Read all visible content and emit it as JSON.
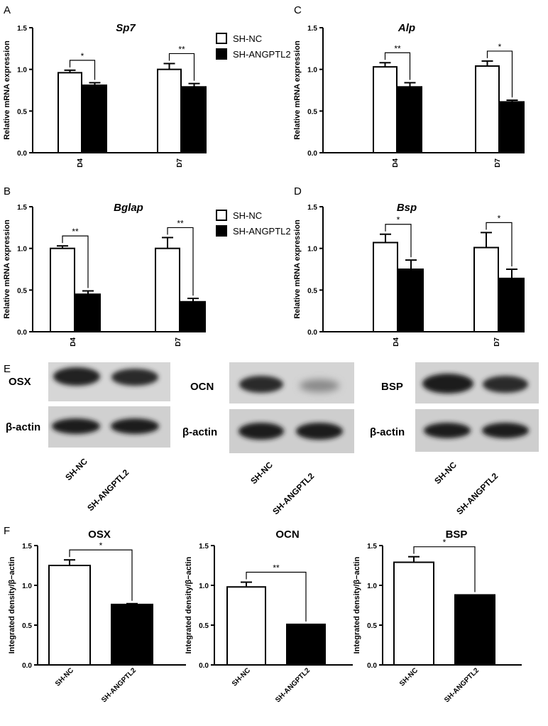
{
  "panel_labels": {
    "A": "A",
    "B": "B",
    "C": "C",
    "D": "D",
    "E": "E",
    "F": "F"
  },
  "legend": {
    "items": [
      {
        "label": "SH-NC",
        "fill": "#ffffff"
      },
      {
        "label": "SH-ANGPTL2",
        "fill": "#000000"
      }
    ]
  },
  "blots": {
    "panels": [
      {
        "target": "OSX",
        "control": "β-actin"
      },
      {
        "target": "OCN",
        "control": "β-actin"
      },
      {
        "target": "BSP",
        "control": "β-actin"
      }
    ],
    "lanes": [
      "SH-NC",
      "SH-ANGPTL2"
    ]
  },
  "chart_data": [
    {
      "id": "A",
      "type": "bar",
      "title": "Sp7",
      "ylabel": "Relative mRNA expression",
      "ylim": [
        0,
        1.5
      ],
      "yticks": [
        "0.0",
        "0.5",
        "1.0",
        "1.5"
      ],
      "categories": [
        "D4",
        "D7"
      ],
      "series": [
        {
          "name": "SH-NC",
          "values": [
            0.96,
            1.0
          ],
          "errors": [
            0.03,
            0.07
          ]
        },
        {
          "name": "SH-ANGPTL2",
          "values": [
            0.81,
            0.79
          ],
          "errors": [
            0.03,
            0.04
          ]
        }
      ],
      "significance": [
        "*",
        "**"
      ]
    },
    {
      "id": "C",
      "type": "bar",
      "title": "Alp",
      "ylabel": "Relative mRNA expression",
      "ylim": [
        0,
        1.5
      ],
      "yticks": [
        "0.0",
        "0.5",
        "1.0",
        "1.5"
      ],
      "categories": [
        "D4",
        "D7"
      ],
      "series": [
        {
          "name": "SH-NC",
          "values": [
            1.03,
            1.04
          ],
          "errors": [
            0.05,
            0.06
          ]
        },
        {
          "name": "SH-ANGPTL2",
          "values": [
            0.79,
            0.61
          ],
          "errors": [
            0.05,
            0.02
          ]
        }
      ],
      "significance": [
        "**",
        "*"
      ]
    },
    {
      "id": "B",
      "type": "bar",
      "title": "Bglap",
      "ylabel": "Relative mRNA expression",
      "ylim": [
        0,
        1.5
      ],
      "yticks": [
        "0.0",
        "0.5",
        "1.0",
        "1.5"
      ],
      "categories": [
        "D4",
        "D7"
      ],
      "series": [
        {
          "name": "SH-NC",
          "values": [
            1.0,
            1.0
          ],
          "errors": [
            0.03,
            0.13
          ]
        },
        {
          "name": "SH-ANGPTL2",
          "values": [
            0.45,
            0.36
          ],
          "errors": [
            0.04,
            0.04
          ]
        }
      ],
      "significance": [
        "**",
        "**"
      ]
    },
    {
      "id": "D",
      "type": "bar",
      "title": "Bsp",
      "ylabel": "Relative mRNA expression",
      "ylim": [
        0,
        1.5
      ],
      "yticks": [
        "0.0",
        "0.5",
        "1.0",
        "1.5"
      ],
      "categories": [
        "D4",
        "D7"
      ],
      "series": [
        {
          "name": "SH-NC",
          "values": [
            1.07,
            1.01
          ],
          "errors": [
            0.1,
            0.18
          ]
        },
        {
          "name": "SH-ANGPTL2",
          "values": [
            0.75,
            0.64
          ],
          "errors": [
            0.11,
            0.11
          ]
        }
      ],
      "significance": [
        "*",
        "*"
      ]
    },
    {
      "id": "F1",
      "type": "bar",
      "title": "OSX",
      "ylabel": "Integrated density/β−actin",
      "ylim": [
        0,
        1.5
      ],
      "yticks": [
        "0.0",
        "0.5",
        "1.0",
        "1.5"
      ],
      "categories": [
        "SH-NC",
        "SH-ANGPTL2"
      ],
      "values": [
        1.25,
        0.76
      ],
      "errors": [
        0.07,
        0.01
      ],
      "fills": [
        "#ffffff",
        "#000000"
      ],
      "significance": "*"
    },
    {
      "id": "F2",
      "type": "bar",
      "title": "OCN",
      "ylabel": "Integrated density/β−actin",
      "ylim": [
        0,
        1.5
      ],
      "yticks": [
        "0.0",
        "0.5",
        "1.0",
        "1.5"
      ],
      "categories": [
        "SH-NC",
        "SH-ANGPTL2"
      ],
      "values": [
        0.98,
        0.51
      ],
      "errors": [
        0.06,
        0.0
      ],
      "fills": [
        "#ffffff",
        "#000000"
      ],
      "significance": "**"
    },
    {
      "id": "F3",
      "type": "bar",
      "title": "BSP",
      "ylabel": "Integrated density/β−actin",
      "ylim": [
        0,
        1.5
      ],
      "yticks": [
        "0.0",
        "0.5",
        "1.0",
        "1.5"
      ],
      "categories": [
        "SH-NC",
        "SH-ANGPTL2"
      ],
      "values": [
        1.29,
        0.88
      ],
      "errors": [
        0.07,
        0.0
      ],
      "fills": [
        "#ffffff",
        "#000000"
      ],
      "significance": "*"
    }
  ]
}
